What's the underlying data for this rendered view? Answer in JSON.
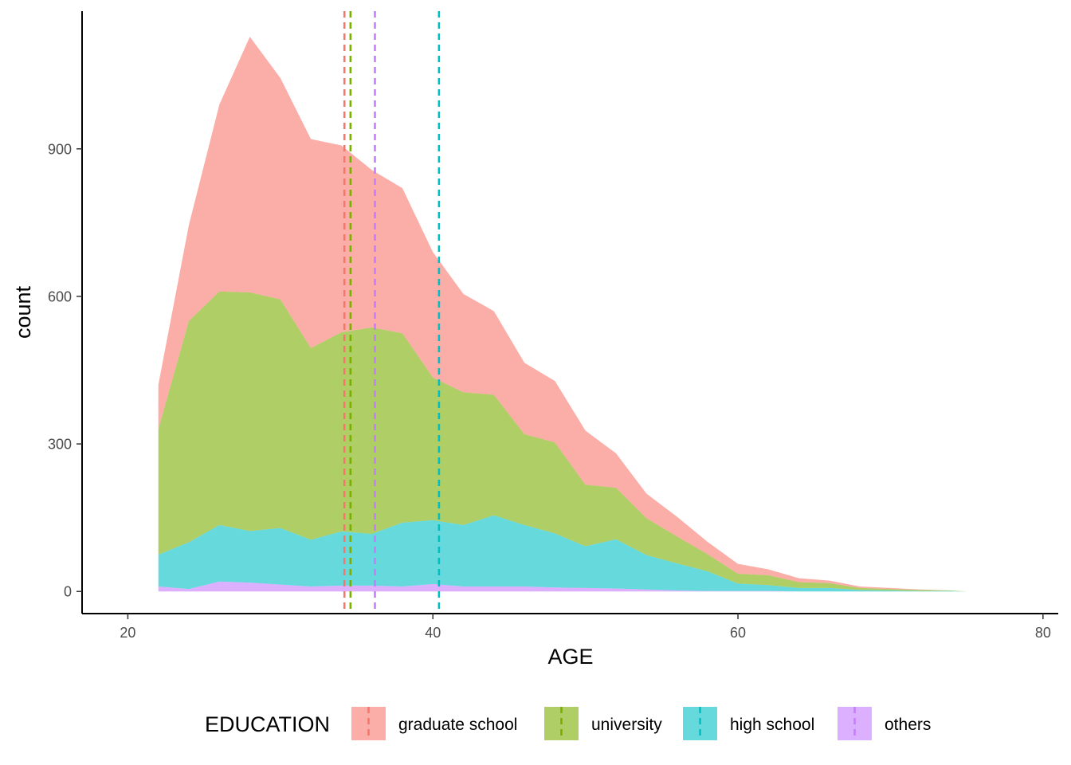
{
  "chart_data": {
    "type": "area",
    "stacked": true,
    "xlabel": "AGE",
    "ylabel": "count",
    "xlim": [
      17,
      81
    ],
    "ylim": [
      -45,
      1180
    ],
    "x_ticks": [
      20,
      40,
      60,
      80
    ],
    "y_ticks": [
      0,
      300,
      600,
      900
    ],
    "grid": false,
    "legend": {
      "title": "EDUCATION",
      "position": "bottom"
    },
    "x": [
      22,
      24,
      26,
      28,
      30,
      32,
      34,
      36,
      38,
      40,
      42,
      44,
      46,
      48,
      50,
      52,
      54,
      56,
      58,
      60,
      62,
      64,
      66,
      68,
      70,
      72,
      74,
      75
    ],
    "series": [
      {
        "name": "graduate school",
        "color": "#F8766D",
        "values": [
          90,
          195,
          380,
          520,
          450,
          425,
          380,
          320,
          295,
          255,
          200,
          170,
          145,
          125,
          110,
          70,
          50,
          40,
          25,
          20,
          12,
          8,
          5,
          3,
          2,
          1,
          0,
          0
        ],
        "mean": 34.2
      },
      {
        "name": "university",
        "color": "#7CAE00",
        "values": [
          255,
          450,
          475,
          485,
          465,
          390,
          405,
          420,
          385,
          290,
          270,
          245,
          185,
          185,
          125,
          105,
          75,
          55,
          35,
          20,
          20,
          12,
          10,
          4,
          3,
          2,
          1,
          0
        ],
        "mean": 34.6
      },
      {
        "name": "high school",
        "color": "#00BFC4",
        "values": [
          65,
          95,
          115,
          105,
          115,
          95,
          110,
          105,
          130,
          130,
          125,
          145,
          125,
          110,
          85,
          100,
          70,
          55,
          40,
          15,
          12,
          7,
          7,
          3,
          2,
          1,
          1,
          0
        ],
        "mean": 40.4
      },
      {
        "name": "others",
        "color": "#C77CFF",
        "values": [
          10,
          5,
          20,
          18,
          14,
          10,
          12,
          12,
          10,
          15,
          10,
          10,
          10,
          8,
          7,
          6,
          4,
          2,
          1,
          1,
          1,
          0,
          0,
          0,
          0,
          0,
          0,
          0
        ],
        "mean": 36.2
      }
    ]
  }
}
